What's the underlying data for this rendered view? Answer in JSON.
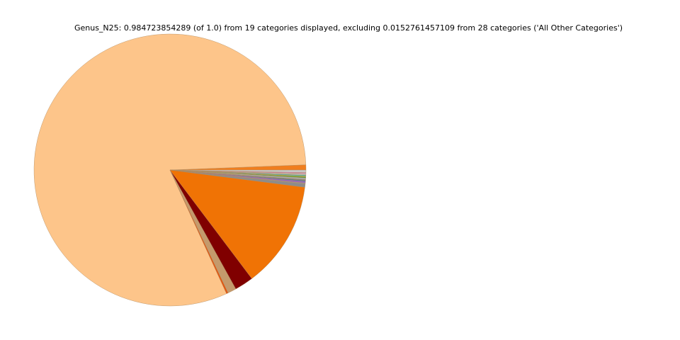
{
  "chart_data": {
    "type": "pie",
    "title": "Genus_N25: 0.984723854289 (of 1.0) from 19 categories displayed, excluding 0.0152761457109 from 28 categories ('All Other Categories')",
    "values": [
      0.006,
      0.8,
      0.002,
      0.01,
      0.022,
      0.125,
      0.004,
      0.001,
      0.002,
      0.001,
      0.001,
      0.002,
      0.001,
      0.001,
      0.001,
      0.001,
      0.001,
      0.001,
      0.003
    ],
    "colors": [
      "#f07e1e",
      "#fdc58a",
      "#e6550d",
      "#c49a6c",
      "#800000",
      "#f07305",
      "#8c8c8c",
      "#999999",
      "#9467bd",
      "#1f77b4",
      "#7f7f7f",
      "#aaaaaa",
      "#2ca02c",
      "#bcbd22",
      "#17becf",
      "#c0c0c0",
      "#d3d3d3",
      "#e377c2",
      "#c7c7c7"
    ]
  }
}
